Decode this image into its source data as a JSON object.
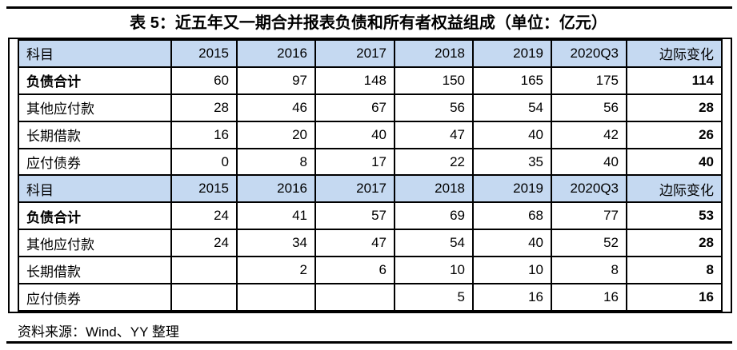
{
  "page": {
    "title": "表 5：近五年又一期合并报表负债和所有者权益组成（单位：亿元）",
    "source": "资料来源：Wind、YY 整理"
  },
  "colors": {
    "header_bg": "#c5d9f1",
    "border": "#000000",
    "text": "#000000"
  },
  "table": {
    "header": [
      "科目",
      "2015",
      "2016",
      "2017",
      "2018",
      "2019",
      "2020Q3",
      "边际变化"
    ],
    "sections": [
      {
        "rows": [
          {
            "label": "负债合计",
            "bold": true,
            "indent": false,
            "values": [
              "60",
              "97",
              "148",
              "150",
              "165",
              "175",
              "114"
            ]
          },
          {
            "label": "其他应付款",
            "bold": false,
            "indent": true,
            "values": [
              "28",
              "46",
              "67",
              "56",
              "54",
              "56",
              "28"
            ]
          },
          {
            "label": "长期借款",
            "bold": false,
            "indent": true,
            "values": [
              "16",
              "20",
              "40",
              "47",
              "40",
              "42",
              "26"
            ]
          },
          {
            "label": "应付债券",
            "bold": false,
            "indent": true,
            "values": [
              "0",
              "8",
              "17",
              "22",
              "35",
              "40",
              "40"
            ]
          }
        ]
      },
      {
        "rows": [
          {
            "label": "负债合计",
            "bold": true,
            "indent": false,
            "values": [
              "24",
              "41",
              "57",
              "69",
              "68",
              "77",
              "53"
            ]
          },
          {
            "label": "其他应付款",
            "bold": false,
            "indent": true,
            "values": [
              "24",
              "34",
              "47",
              "54",
              "40",
              "52",
              "28"
            ]
          },
          {
            "label": "长期借款",
            "bold": false,
            "indent": true,
            "values": [
              "",
              "2",
              "6",
              "10",
              "10",
              "8",
              "8"
            ]
          },
          {
            "label": "应付债券",
            "bold": false,
            "indent": true,
            "values": [
              "",
              "",
              "",
              "5",
              "16",
              "16",
              "16"
            ]
          }
        ]
      }
    ]
  }
}
